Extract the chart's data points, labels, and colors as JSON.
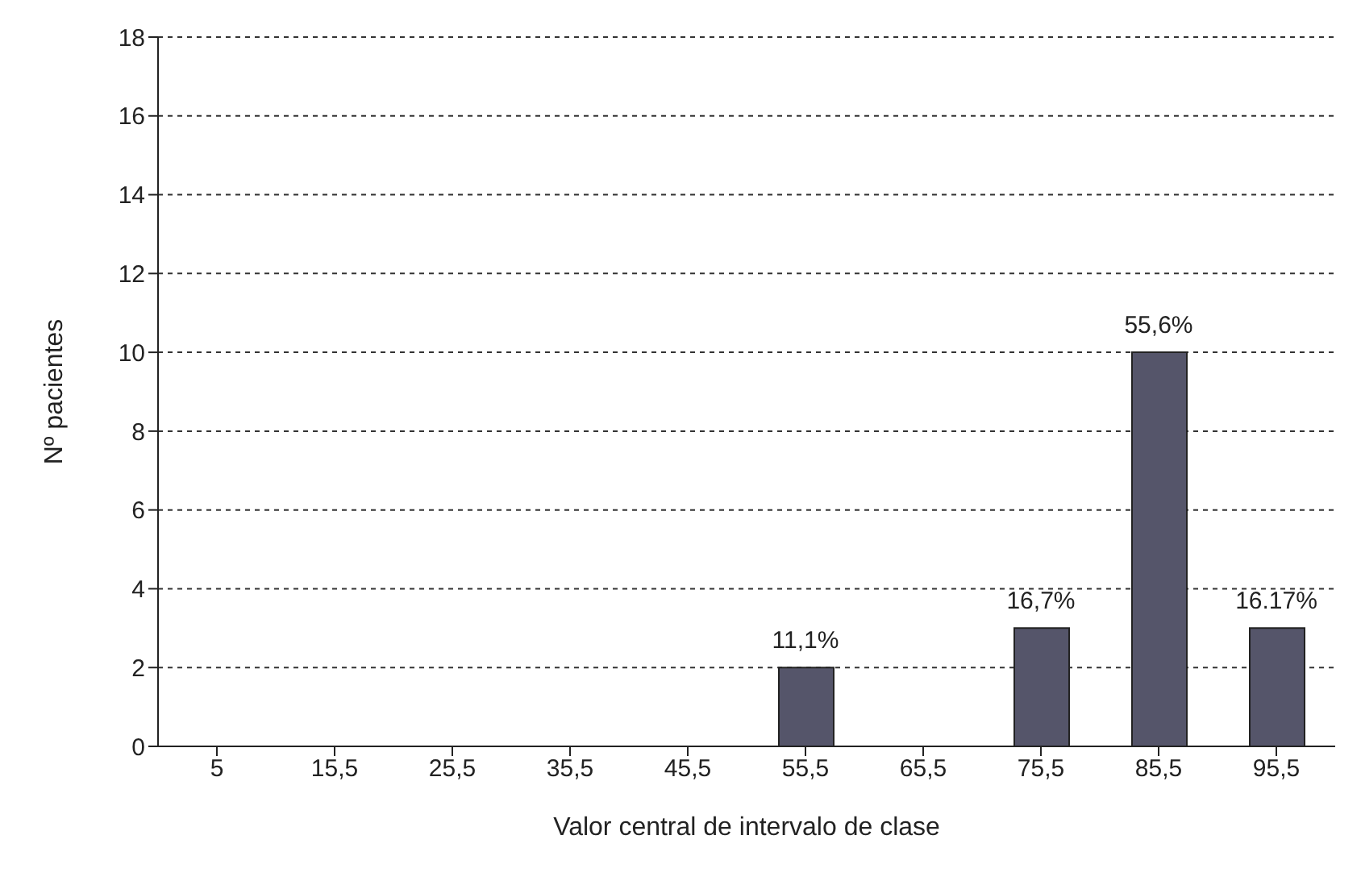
{
  "chart_data": {
    "type": "bar",
    "xlabel": "Valor central de intervalo de clase",
    "ylabel": "Nº pacientes",
    "categories": [
      "5",
      "15,5",
      "25,5",
      "35,5",
      "45,5",
      "55,5",
      "65,5",
      "75,5",
      "85,5",
      "95,5"
    ],
    "values": [
      0,
      0,
      0,
      0,
      0,
      2,
      0,
      3,
      10,
      3
    ],
    "annotations": [
      {
        "text": "11,1%",
        "x": "55,5",
        "y": 2
      },
      {
        "text": "16,7%",
        "x": "75,5",
        "y": 3
      },
      {
        "text": "55,6%",
        "x": "85,5",
        "y": 10
      },
      {
        "text": "16.17%",
        "x": "95,5",
        "y": 3
      }
    ],
    "color": "#55556a",
    "ylim": [
      0,
      18
    ],
    "yticks": [
      0,
      2,
      4,
      6,
      8,
      10,
      12,
      14,
      16,
      18
    ],
    "grid": "y"
  }
}
